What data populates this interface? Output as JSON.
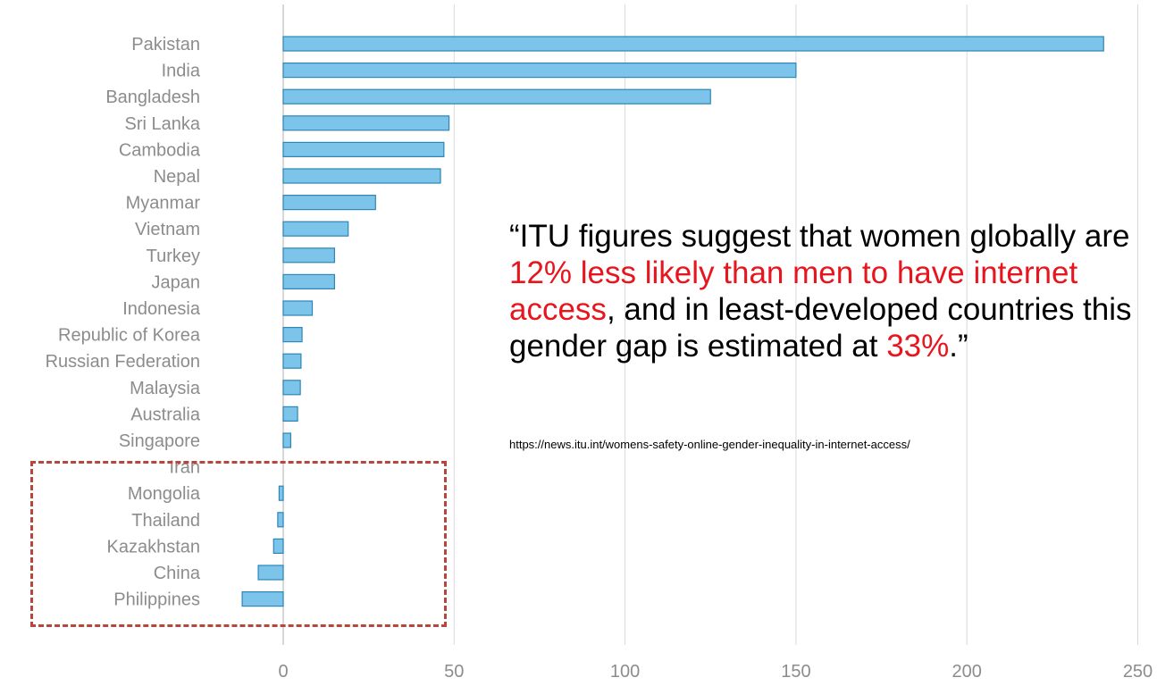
{
  "chart_data": {
    "type": "bar",
    "orientation": "horizontal",
    "categories": [
      "Pakistan",
      "India",
      "Bangladesh",
      "Sri Lanka",
      "Cambodia",
      "Nepal",
      "Myanmar",
      "Vietnam",
      "Turkey",
      "Japan",
      "Indonesia",
      "Republic of Korea",
      "Russian Federation",
      "Malaysia",
      "Australia",
      "Singapore",
      "Iran",
      "Mongolia",
      "Thailand",
      "Kazakhstan",
      "China",
      "Philippines"
    ],
    "values": [
      240,
      150,
      125,
      48.5,
      47,
      46,
      27,
      19,
      15,
      15,
      8.5,
      5.5,
      5.2,
      5,
      4.2,
      2.2,
      0,
      -1.2,
      -1.6,
      -2.8,
      -7.3,
      -12
    ],
    "xlim": [
      -15,
      250
    ],
    "xticks": [
      0,
      50,
      100,
      150,
      200,
      250
    ],
    "xtick_labels": [
      "0",
      "50",
      "100",
      "150",
      "200",
      "250"
    ],
    "grid": true,
    "title": "",
    "xlabel": "",
    "ylabel": "",
    "highlighted_categories": [
      "Iran",
      "Mongolia",
      "Thailand",
      "Kazakhstan",
      "China",
      "Philippines"
    ]
  },
  "annotation": {
    "quote_parts": [
      {
        "text": "“ITU figures suggest that women globally are ",
        "highlight": false
      },
      {
        "text": "12% less likely than men to have internet access",
        "highlight": true
      },
      {
        "text": ", and in least-developed countries this gender gap is estimated at ",
        "highlight": false
      },
      {
        "text": "33%",
        "highlight": true
      },
      {
        "text": ".”",
        "highlight": false
      }
    ],
    "source_url": "https://news.itu.int/womens-safety-online-gender-inequality-in-internet-access/"
  },
  "colors": {
    "bar_fill": "#7cc4ea",
    "bar_stroke": "#2e86b5",
    "highlight_text": "#e8141e",
    "highlight_box": "#b5473f"
  }
}
